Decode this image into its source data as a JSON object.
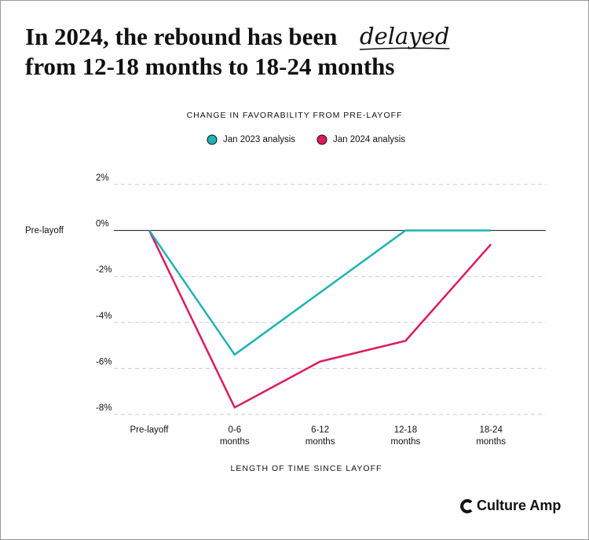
{
  "chart_data": {
    "type": "line",
    "title": [
      "In 2024, the rebound has been",
      "delayed",
      "from 12-18 months to 18-24 months"
    ],
    "subtitle": "CHANGE IN FAVORABILITY FROM PRE-LAYOFF",
    "x_label": "LENGTH OF TIME SINCE LAYOFF",
    "annotation": "Pre-layoff",
    "brand": "Culture Amp",
    "categories": [
      "Pre-layoff",
      "0-6 months",
      "6-12 months",
      "12-18 months",
      "18-24 months"
    ],
    "series": [
      {
        "name": "Jan 2023 analysis",
        "color": "#1fb2b4",
        "values": [
          0,
          -5.4,
          -2.7,
          0,
          0
        ]
      },
      {
        "name": "Jan 2024 analysis",
        "color": "#dc1c5c",
        "values": [
          0,
          -7.7,
          -5.7,
          -4.8,
          -0.6
        ]
      }
    ],
    "ylim": [
      -8,
      2
    ],
    "yticks": [
      {
        "value": 2,
        "label": "2%"
      },
      {
        "value": 0,
        "label": "0%"
      },
      {
        "value": -2,
        "label": "-2%"
      },
      {
        "value": -4,
        "label": "-4%"
      },
      {
        "value": -6,
        "label": "-6%"
      },
      {
        "value": -8,
        "label": "-8%"
      }
    ],
    "grid": true,
    "zero_line": true,
    "legend": "top"
  }
}
